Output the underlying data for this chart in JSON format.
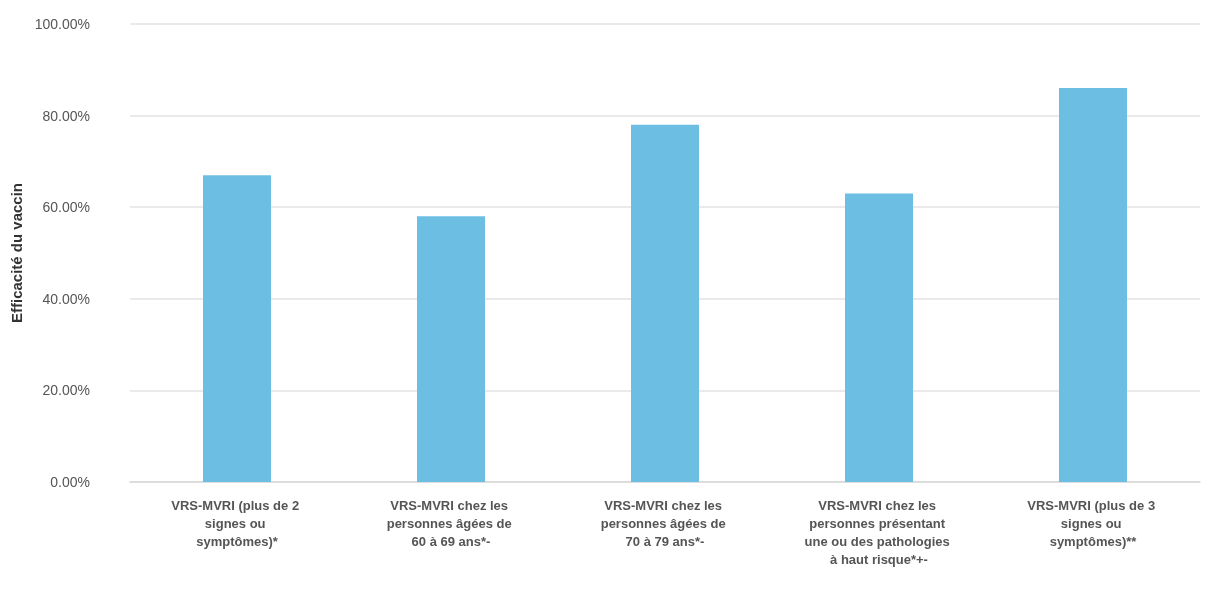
{
  "chart_data": {
    "type": "bar",
    "ylabel": "Efficacité du vaccin",
    "categories": [
      "VRS-MVRI (plus de 2 signes ou symptômes)*",
      "VRS-MVRI chez les personnes âgées de 60 à 69 ans*-",
      "VRS-MVRI chez les personnes âgées de 70 à 79 ans*-",
      "VRS-MVRI chez les personnes présentant une ou des pathologies à haut risque*+-",
      "VRS-MVRI (plus de 3 signes ou symptômes)**"
    ],
    "values": [
      67,
      58,
      78,
      63,
      86
    ],
    "color": "#6cbfe3",
    "ylim": [
      0,
      100
    ],
    "yticks": [
      {
        "value": 0,
        "label": "0.00%"
      },
      {
        "value": 20,
        "label": "20.00%"
      },
      {
        "value": 40,
        "label": "40.00%"
      },
      {
        "value": 60,
        "label": "60.00%"
      },
      {
        "value": 80,
        "label": "80.00%"
      },
      {
        "value": 100,
        "label": "100.00%"
      }
    ],
    "grid": "y"
  }
}
